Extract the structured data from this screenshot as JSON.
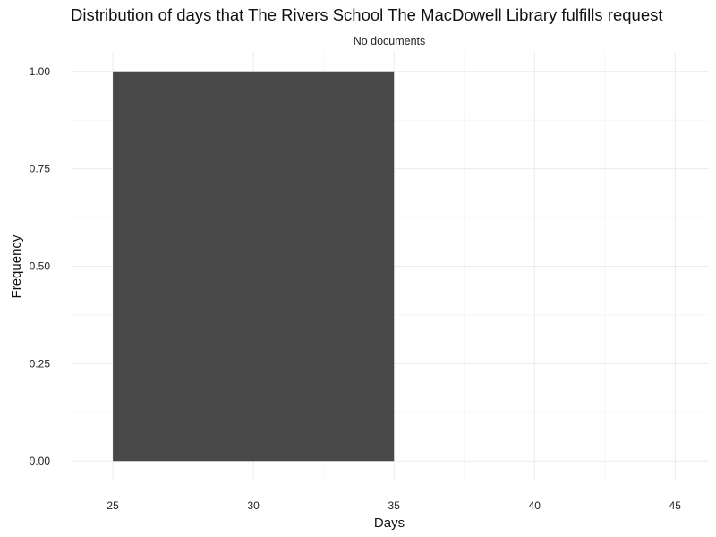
{
  "chart_data": {
    "type": "bar",
    "title": "Distribution of days that The Rivers School  The MacDowell Library fulfills request",
    "subtitle": "No documents",
    "xlabel": "Days",
    "ylabel": "Frequency",
    "xlim": [
      23.5,
      46.2
    ],
    "ylim": [
      -0.05,
      1.05
    ],
    "x_ticks": [
      "25",
      "30",
      "35",
      "40",
      "45"
    ],
    "y_ticks": [
      "0.00",
      "0.25",
      "0.50",
      "0.75",
      "1.00"
    ],
    "bins": [
      {
        "x_start": 25,
        "x_end": 35,
        "value": 1
      }
    ],
    "bar_color": "#484848",
    "grid": true,
    "legend": "none"
  }
}
